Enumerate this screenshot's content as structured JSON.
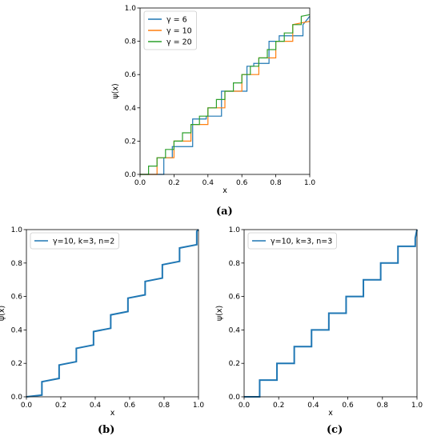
{
  "captions": [
    "(a)",
    "(b)",
    "(c)"
  ],
  "colors": {
    "blue": "#1f77b4",
    "orange": "#ff7f0e",
    "green": "#2ca02c"
  },
  "chart_data": [
    {
      "type": "line",
      "panel": "a",
      "xlabel": "x",
      "ylabel": "ψ(x)",
      "xlim": [
        0,
        1
      ],
      "ylim": [
        0,
        1
      ],
      "xticks": [
        "0.0",
        "0.2",
        "0.4",
        "0.6",
        "0.8",
        "1.0"
      ],
      "yticks": [
        "0.0",
        "0.2",
        "0.4",
        "0.6",
        "0.8",
        "1.0"
      ],
      "legend_position": "upper-left",
      "series": [
        {
          "name": "γ = 6",
          "color": "#1f77b4",
          "x": [
            0.0,
            0.14,
            0.14,
            0.19,
            0.19,
            0.31,
            0.31,
            0.39,
            0.39,
            0.48,
            0.48,
            0.63,
            0.63,
            0.67,
            0.67,
            0.76,
            0.76,
            0.82,
            0.82,
            0.96,
            0.96,
            1.0
          ],
          "y": [
            0.0,
            0.0,
            0.1,
            0.1,
            0.167,
            0.167,
            0.333,
            0.333,
            0.35,
            0.35,
            0.5,
            0.5,
            0.65,
            0.65,
            0.667,
            0.667,
            0.8,
            0.8,
            0.833,
            0.833,
            0.9,
            0.95
          ]
        },
        {
          "name": "γ = 10",
          "color": "#ff7f0e",
          "x": [
            0.0,
            0.1,
            0.1,
            0.2,
            0.2,
            0.3,
            0.3,
            0.4,
            0.4,
            0.5,
            0.5,
            0.6,
            0.6,
            0.7,
            0.7,
            0.8,
            0.8,
            0.9,
            0.9,
            1.0
          ],
          "y": [
            0.0,
            0.0,
            0.1,
            0.1,
            0.2,
            0.2,
            0.3,
            0.3,
            0.4,
            0.4,
            0.5,
            0.5,
            0.6,
            0.6,
            0.7,
            0.7,
            0.8,
            0.8,
            0.9,
            0.92
          ]
        },
        {
          "name": "γ = 20",
          "color": "#2ca02c",
          "x": [
            0.0,
            0.05,
            0.05,
            0.1,
            0.1,
            0.15,
            0.15,
            0.2,
            0.2,
            0.25,
            0.25,
            0.3,
            0.3,
            0.35,
            0.35,
            0.4,
            0.4,
            0.45,
            0.45,
            0.5,
            0.5,
            0.55,
            0.55,
            0.6,
            0.6,
            0.65,
            0.65,
            0.7,
            0.7,
            0.75,
            0.75,
            0.8,
            0.8,
            0.85,
            0.85,
            0.9,
            0.9,
            0.95,
            0.95,
            1.0
          ],
          "y": [
            0.0,
            0.0,
            0.05,
            0.05,
            0.1,
            0.1,
            0.15,
            0.15,
            0.2,
            0.2,
            0.25,
            0.25,
            0.3,
            0.3,
            0.35,
            0.35,
            0.4,
            0.4,
            0.45,
            0.45,
            0.5,
            0.5,
            0.55,
            0.55,
            0.6,
            0.6,
            0.65,
            0.65,
            0.7,
            0.7,
            0.75,
            0.75,
            0.8,
            0.8,
            0.85,
            0.85,
            0.9,
            0.9,
            0.95,
            0.96
          ]
        }
      ]
    },
    {
      "type": "line",
      "panel": "b",
      "xlabel": "x",
      "ylabel": "ψ(x)",
      "xlim": [
        0,
        1
      ],
      "ylim": [
        0,
        1
      ],
      "xticks": [
        "0.0",
        "0.2",
        "0.4",
        "0.6",
        "0.8",
        "1.0"
      ],
      "yticks": [
        "0.0",
        "0.2",
        "0.4",
        "0.6",
        "0.8",
        "1.0"
      ],
      "legend_position": "upper-left",
      "series": [
        {
          "name": "γ=10, k=3, n=2",
          "color": "#1f77b4",
          "x": [
            0.0,
            0.09,
            0.09,
            0.19,
            0.19,
            0.29,
            0.29,
            0.39,
            0.39,
            0.49,
            0.49,
            0.59,
            0.59,
            0.69,
            0.69,
            0.79,
            0.79,
            0.89,
            0.89,
            0.99,
            0.99,
            1.0
          ],
          "y": [
            0.0,
            0.01,
            0.09,
            0.11,
            0.19,
            0.21,
            0.29,
            0.31,
            0.39,
            0.41,
            0.49,
            0.51,
            0.59,
            0.61,
            0.69,
            0.71,
            0.79,
            0.81,
            0.89,
            0.91,
            0.99,
            1.0
          ]
        }
      ]
    },
    {
      "type": "line",
      "panel": "c",
      "xlabel": "x",
      "ylabel": "ψ(x)",
      "xlim": [
        0,
        1
      ],
      "ylim": [
        0,
        1
      ],
      "xticks": [
        "0.0",
        "0.2",
        "0.4",
        "0.6",
        "0.8",
        "1.0"
      ],
      "yticks": [
        "0.0",
        "0.2",
        "0.4",
        "0.6",
        "0.8",
        "1.0"
      ],
      "legend_position": "upper-left",
      "series": [
        {
          "name": "γ=10, k=3, n=3",
          "color": "#1f77b4",
          "x": [
            0.0,
            0.09,
            0.09,
            0.19,
            0.19,
            0.29,
            0.29,
            0.39,
            0.39,
            0.49,
            0.49,
            0.59,
            0.59,
            0.69,
            0.69,
            0.79,
            0.79,
            0.89,
            0.89,
            0.99,
            0.99,
            1.0
          ],
          "y": [
            0.0,
            0.0,
            0.1,
            0.1,
            0.2,
            0.2,
            0.3,
            0.3,
            0.4,
            0.4,
            0.5,
            0.5,
            0.6,
            0.6,
            0.7,
            0.7,
            0.8,
            0.8,
            0.9,
            0.9,
            0.95,
            1.0
          ]
        }
      ]
    }
  ]
}
